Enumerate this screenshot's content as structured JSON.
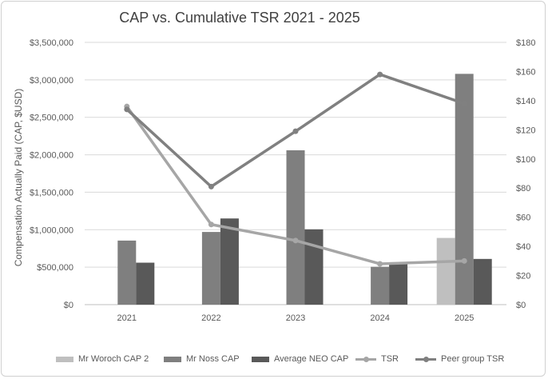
{
  "chart_data": {
    "type": "bar",
    "title": "CAP vs. Cumulative TSR 2021 - 2025",
    "ylabel": "Compensation Actually Paid (CAP, $USD)",
    "y2label": "",
    "categories": [
      "2021",
      "2022",
      "2023",
      "2024",
      "2025"
    ],
    "ylim": [
      0,
      3500000
    ],
    "y_ticks": [
      "$0",
      "$500,000",
      "$1,000,000",
      "$1,500,000",
      "$2,000,000",
      "$2,500,000",
      "$3,000,000",
      "$3,500,000"
    ],
    "y2lim": [
      0,
      180
    ],
    "y2_ticks": [
      "$0",
      "$20",
      "$40",
      "$60",
      "$80",
      "$100",
      "$120",
      "$140",
      "$160",
      "$180"
    ],
    "grid": true,
    "legend_position": "bottom",
    "bar_series": [
      {
        "name": "Mr Woroch CAP 2",
        "color": "#bfbfbf",
        "values": [
          null,
          null,
          null,
          null,
          890000
        ]
      },
      {
        "name": "Mr Noss CAP",
        "color": "#7f7f7f",
        "values": [
          855000,
          970000,
          2060000,
          505000,
          3080000
        ]
      },
      {
        "name": "Average NEO CAP",
        "color": "#595959",
        "values": [
          560000,
          1150000,
          1005000,
          545000,
          610000
        ]
      }
    ],
    "line_series": [
      {
        "name": "TSR",
        "color": "#a6a6a6",
        "axis": "right",
        "values": [
          136,
          55,
          44,
          28,
          30
        ]
      },
      {
        "name": "Peer group TSR",
        "color": "#808080",
        "axis": "right",
        "values": [
          134,
          81,
          119,
          158,
          138
        ]
      }
    ]
  }
}
